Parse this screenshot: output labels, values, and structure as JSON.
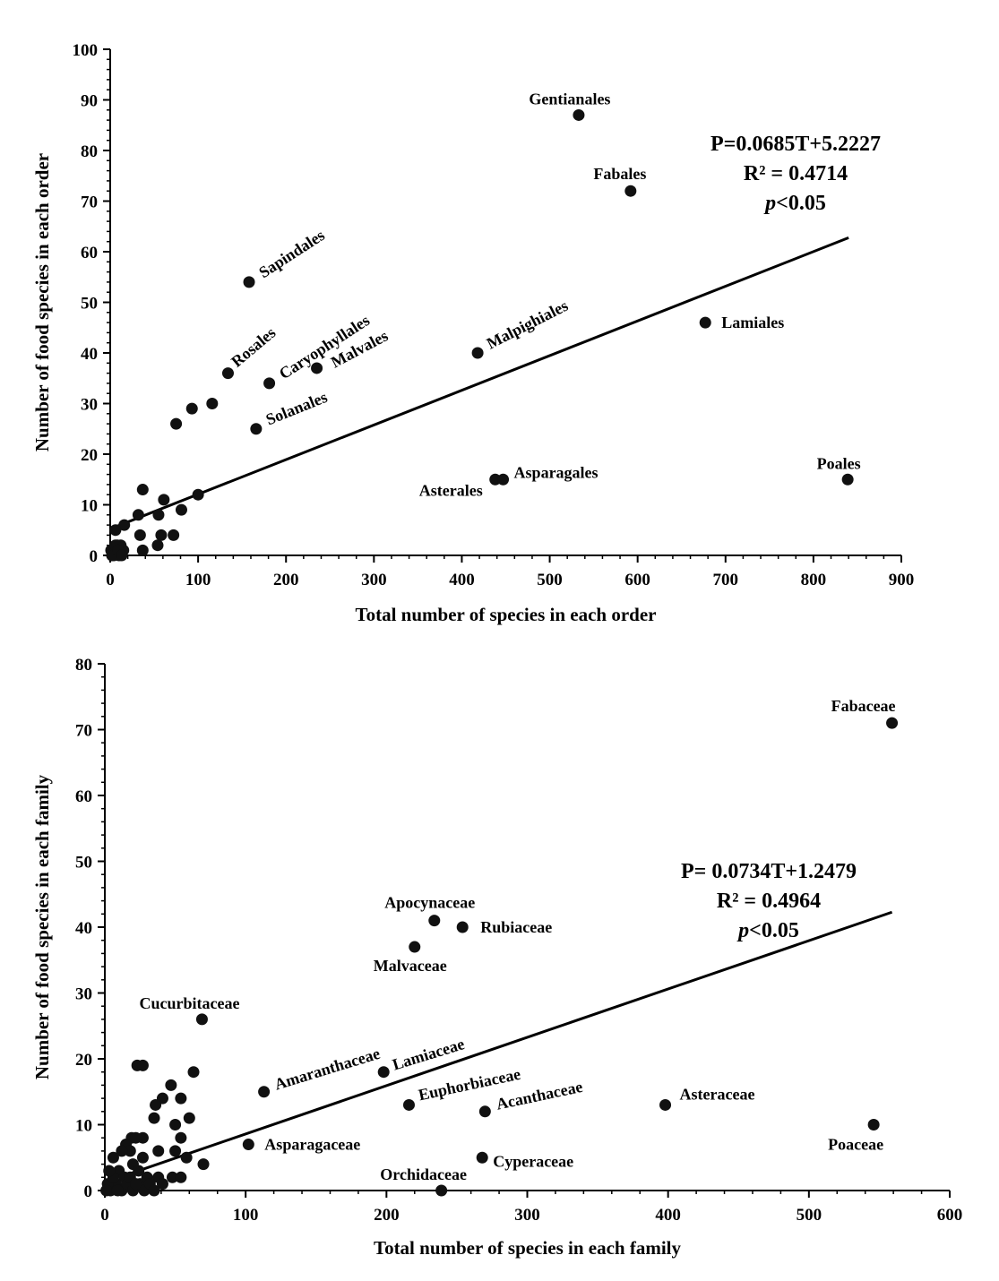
{
  "chart_data": [
    {
      "type": "scatter",
      "xlabel": "Total number of species in each order",
      "ylabel": "Number of food species in each order",
      "xlim": [
        0,
        900
      ],
      "ylim": [
        0,
        100
      ],
      "xticks": [
        "0",
        "100",
        "200",
        "300",
        "400",
        "500",
        "600",
        "700",
        "800",
        "900"
      ],
      "yticks": [
        "0",
        "10",
        "20",
        "30",
        "40",
        "50",
        "60",
        "70",
        "80",
        "90",
        "100"
      ],
      "equation": "P=0.0685T+5.2227",
      "r2": "R² = 0.4714",
      "pval_p": "p",
      "pval_rest": "<0.05",
      "trend": {
        "slope": 0.0685,
        "intercept": 5.2227,
        "x_range": [
          0,
          840
        ]
      },
      "labeled_points": [
        {
          "name": "Gentianales",
          "x": 533,
          "y": 87
        },
        {
          "name": "Fabales",
          "x": 592,
          "y": 72
        },
        {
          "name": "Lamiales",
          "x": 677,
          "y": 46
        },
        {
          "name": "Poales",
          "x": 839,
          "y": 15
        },
        {
          "name": "Malpighiales",
          "x": 418,
          "y": 40
        },
        {
          "name": "Asterales",
          "x": 438,
          "y": 15
        },
        {
          "name": "Asparagales",
          "x": 447,
          "y": 15
        },
        {
          "name": "Sapindales",
          "x": 158,
          "y": 54
        },
        {
          "name": "Rosales",
          "x": 134,
          "y": 36
        },
        {
          "name": "Caryophyllales",
          "x": 181,
          "y": 34
        },
        {
          "name": "Malvales",
          "x": 235,
          "y": 37
        },
        {
          "name": "Solanales",
          "x": 166,
          "y": 25
        }
      ],
      "points": [
        [
          75,
          26
        ],
        [
          93,
          29
        ],
        [
          116,
          30
        ],
        [
          100,
          12
        ],
        [
          37,
          13
        ],
        [
          61,
          11
        ],
        [
          81,
          9
        ],
        [
          32,
          8
        ],
        [
          55,
          8
        ],
        [
          34,
          4
        ],
        [
          58,
          4
        ],
        [
          72,
          4
        ],
        [
          54,
          2
        ],
        [
          37,
          1
        ],
        [
          16,
          6
        ],
        [
          6,
          5
        ],
        [
          2,
          0
        ],
        [
          5,
          1
        ],
        [
          8,
          2
        ],
        [
          12,
          2
        ],
        [
          15,
          1
        ],
        [
          3,
          0
        ],
        [
          10,
          0
        ],
        [
          1,
          1
        ],
        [
          6,
          2
        ],
        [
          4,
          0
        ],
        [
          9,
          1
        ],
        [
          13,
          0
        ]
      ]
    },
    {
      "type": "scatter",
      "xlabel": "Total number of species in each family",
      "ylabel": "Number of food species in each family",
      "xlim": [
        0,
        600
      ],
      "ylim": [
        0,
        80
      ],
      "xticks": [
        "0",
        "100",
        "200",
        "300",
        "400",
        "500",
        "600"
      ],
      "yticks": [
        "0",
        "10",
        "20",
        "30",
        "40",
        "50",
        "60",
        "70",
        "80"
      ],
      "equation": "P= 0.0734T+1.2479",
      "r2": "R² = 0.4964",
      "pval_p": "p",
      "pval_rest": "<0.05",
      "trend": {
        "slope": 0.0734,
        "intercept": 1.2479,
        "x_range": [
          10,
          559
        ]
      },
      "labeled_points": [
        {
          "name": "Fabaceae",
          "x": 559,
          "y": 71
        },
        {
          "name": "Apocynaceae",
          "x": 234,
          "y": 41
        },
        {
          "name": "Rubiaceae",
          "x": 254,
          "y": 40
        },
        {
          "name": "Malvaceae",
          "x": 220,
          "y": 37
        },
        {
          "name": "Cucurbitaceae",
          "x": 69,
          "y": 26
        },
        {
          "name": "Amaranthaceae",
          "x": 113,
          "y": 15
        },
        {
          "name": "Lamiaceae",
          "x": 198,
          "y": 18
        },
        {
          "name": "Euphorbiaceae",
          "x": 216,
          "y": 13
        },
        {
          "name": "Acanthaceae",
          "x": 270,
          "y": 12
        },
        {
          "name": "Asteraceae",
          "x": 398,
          "y": 13
        },
        {
          "name": "Poaceae",
          "x": 546,
          "y": 10
        },
        {
          "name": "Asparagaceae",
          "x": 102,
          "y": 7
        },
        {
          "name": "Cyperaceae",
          "x": 268,
          "y": 5
        },
        {
          "name": "Orchidaceae",
          "x": 239,
          "y": 0
        }
      ],
      "points": [
        [
          23,
          19
        ],
        [
          27,
          19
        ],
        [
          63,
          18
        ],
        [
          47,
          16
        ],
        [
          41,
          14
        ],
        [
          54,
          14
        ],
        [
          36,
          13
        ],
        [
          60,
          11
        ],
        [
          35,
          11
        ],
        [
          50,
          10
        ],
        [
          54,
          8
        ],
        [
          27,
          8
        ],
        [
          19,
          8
        ],
        [
          22,
          8
        ],
        [
          70,
          4
        ],
        [
          58,
          5
        ],
        [
          50,
          6
        ],
        [
          38,
          6
        ],
        [
          6,
          5
        ],
        [
          27,
          5
        ],
        [
          48,
          2
        ],
        [
          54,
          2
        ],
        [
          38,
          2
        ],
        [
          41,
          1
        ],
        [
          15,
          7
        ],
        [
          18,
          6
        ],
        [
          12,
          6
        ],
        [
          20,
          4
        ],
        [
          10,
          3
        ],
        [
          14,
          2
        ],
        [
          8,
          1
        ],
        [
          4,
          0
        ],
        [
          2,
          1
        ],
        [
          6,
          2
        ],
        [
          12,
          0
        ],
        [
          16,
          1
        ],
        [
          20,
          0
        ],
        [
          25,
          1
        ],
        [
          28,
          0
        ],
        [
          30,
          2
        ],
        [
          24,
          3
        ],
        [
          3,
          3
        ],
        [
          1,
          0
        ],
        [
          9,
          0
        ],
        [
          18,
          2
        ],
        [
          22,
          1
        ],
        [
          32,
          1
        ],
        [
          35,
          0
        ]
      ]
    }
  ]
}
